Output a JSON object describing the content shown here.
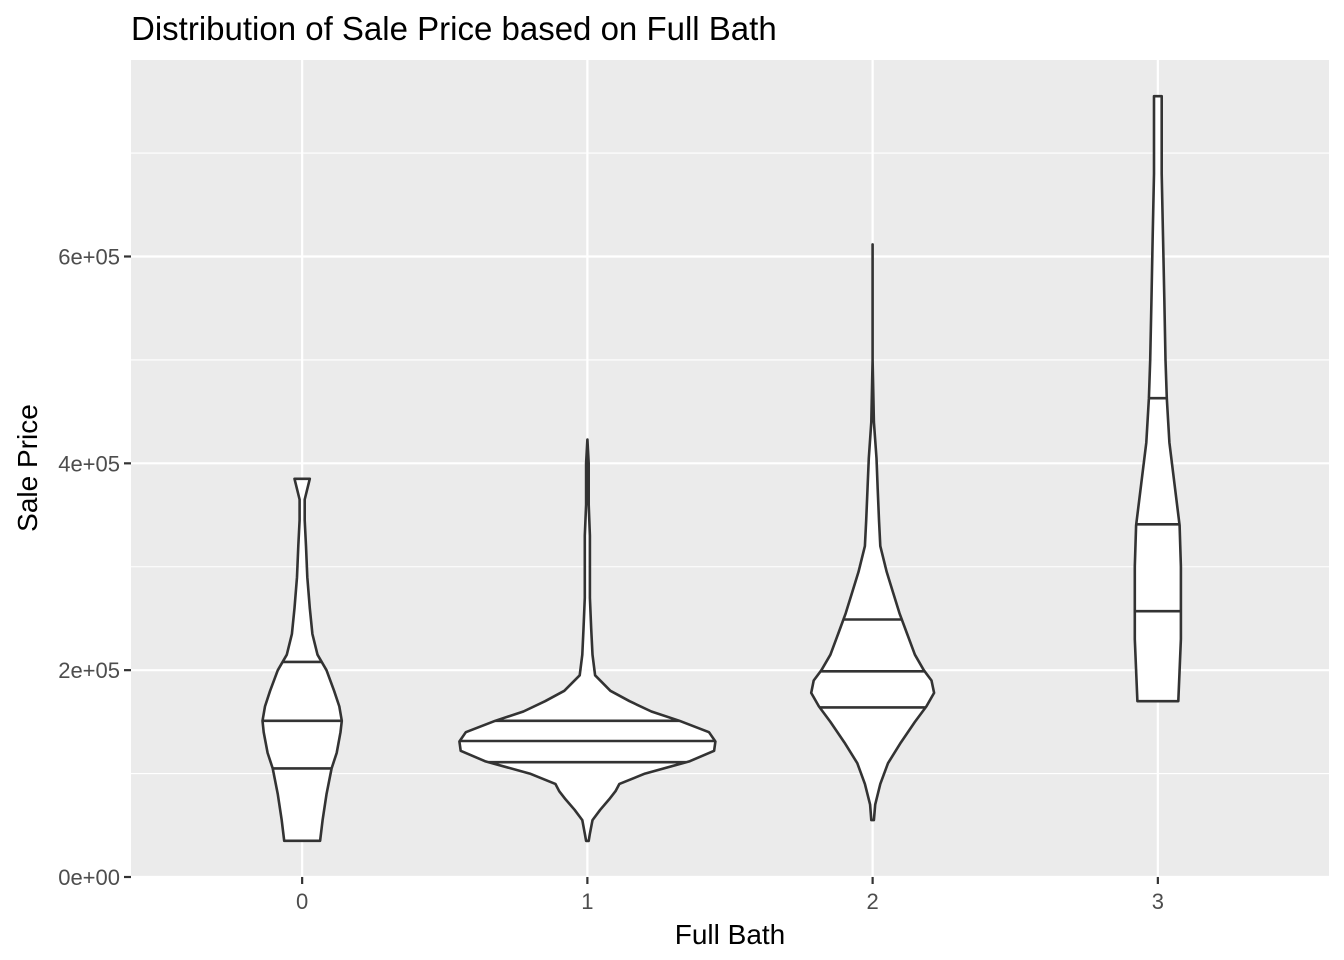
{
  "chart_data": {
    "type": "violin",
    "title": "Distribution of Sale Price based on Full Bath",
    "xlabel": "Full Bath",
    "ylabel": "Sale Price",
    "categories": [
      "0",
      "1",
      "2",
      "3"
    ],
    "ylim": [
      0,
      790000
    ],
    "yticks": [
      0,
      200000,
      400000,
      600000
    ],
    "ytick_labels": [
      "0e+00",
      "2e+05",
      "4e+05",
      "6e+05"
    ],
    "grid": true,
    "background": "#ebebeb",
    "violins": [
      {
        "category": "0",
        "min": 35000,
        "max": 385000,
        "quantiles": [
          105000,
          151000,
          208000
        ],
        "profile": [
          [
            35000,
            0.14
          ],
          [
            55000,
            0.16
          ],
          [
            80000,
            0.19
          ],
          [
            105000,
            0.23
          ],
          [
            120000,
            0.27
          ],
          [
            140000,
            0.3
          ],
          [
            151000,
            0.31
          ],
          [
            165000,
            0.29
          ],
          [
            180000,
            0.25
          ],
          [
            200000,
            0.19
          ],
          [
            215000,
            0.12
          ],
          [
            235000,
            0.08
          ],
          [
            260000,
            0.06
          ],
          [
            290000,
            0.04
          ],
          [
            320000,
            0.03
          ],
          [
            345000,
            0.02
          ],
          [
            365000,
            0.02
          ],
          [
            385000,
            0.06
          ]
        ]
      },
      {
        "category": "1",
        "min": 34900,
        "max": 423000,
        "quantiles": [
          111000,
          131500,
          151000
        ],
        "profile": [
          [
            34900,
            0.01
          ],
          [
            42000,
            0.02
          ],
          [
            55000,
            0.04
          ],
          [
            65000,
            0.1
          ],
          [
            75000,
            0.17
          ],
          [
            83000,
            0.22
          ],
          [
            90000,
            0.25
          ],
          [
            100000,
            0.45
          ],
          [
            112000,
            0.8
          ],
          [
            122000,
            0.99
          ],
          [
            131000,
            1.0
          ],
          [
            140000,
            0.95
          ],
          [
            151000,
            0.72
          ],
          [
            160000,
            0.5
          ],
          [
            170000,
            0.33
          ],
          [
            180000,
            0.18
          ],
          [
            195000,
            0.06
          ],
          [
            215000,
            0.04
          ],
          [
            240000,
            0.03
          ],
          [
            270000,
            0.02
          ],
          [
            300000,
            0.02
          ],
          [
            330000,
            0.02
          ],
          [
            360000,
            0.01
          ],
          [
            400000,
            0.01
          ],
          [
            423000,
            0.0
          ]
        ]
      },
      {
        "category": "2",
        "min": 55000,
        "max": 611657,
        "quantiles": [
          164000,
          198900,
          249000
        ],
        "profile": [
          [
            55000,
            0.01
          ],
          [
            70000,
            0.02
          ],
          [
            90000,
            0.06
          ],
          [
            110000,
            0.12
          ],
          [
            130000,
            0.22
          ],
          [
            150000,
            0.33
          ],
          [
            165000,
            0.42
          ],
          [
            178000,
            0.48
          ],
          [
            190000,
            0.46
          ],
          [
            200000,
            0.4
          ],
          [
            215000,
            0.33
          ],
          [
            235000,
            0.27
          ],
          [
            255000,
            0.21
          ],
          [
            275000,
            0.16
          ],
          [
            295000,
            0.11
          ],
          [
            320000,
            0.06
          ],
          [
            345000,
            0.05
          ],
          [
            375000,
            0.04
          ],
          [
            405000,
            0.03
          ],
          [
            440000,
            0.01
          ],
          [
            500000,
            0.0
          ],
          [
            611657,
            0.0
          ]
        ]
      },
      {
        "category": "3",
        "min": 170000,
        "max": 755000,
        "quantiles": [
          257000,
          341000,
          463000
        ],
        "profile": [
          [
            170000,
            0.16
          ],
          [
            200000,
            0.17
          ],
          [
            230000,
            0.18
          ],
          [
            260000,
            0.18
          ],
          [
            300000,
            0.18
          ],
          [
            340000,
            0.17
          ],
          [
            380000,
            0.13
          ],
          [
            420000,
            0.09
          ],
          [
            463000,
            0.07
          ],
          [
            500000,
            0.06
          ],
          [
            560000,
            0.05
          ],
          [
            620000,
            0.04
          ],
          [
            680000,
            0.03
          ],
          [
            720000,
            0.03
          ],
          [
            755000,
            0.03
          ]
        ]
      }
    ]
  }
}
